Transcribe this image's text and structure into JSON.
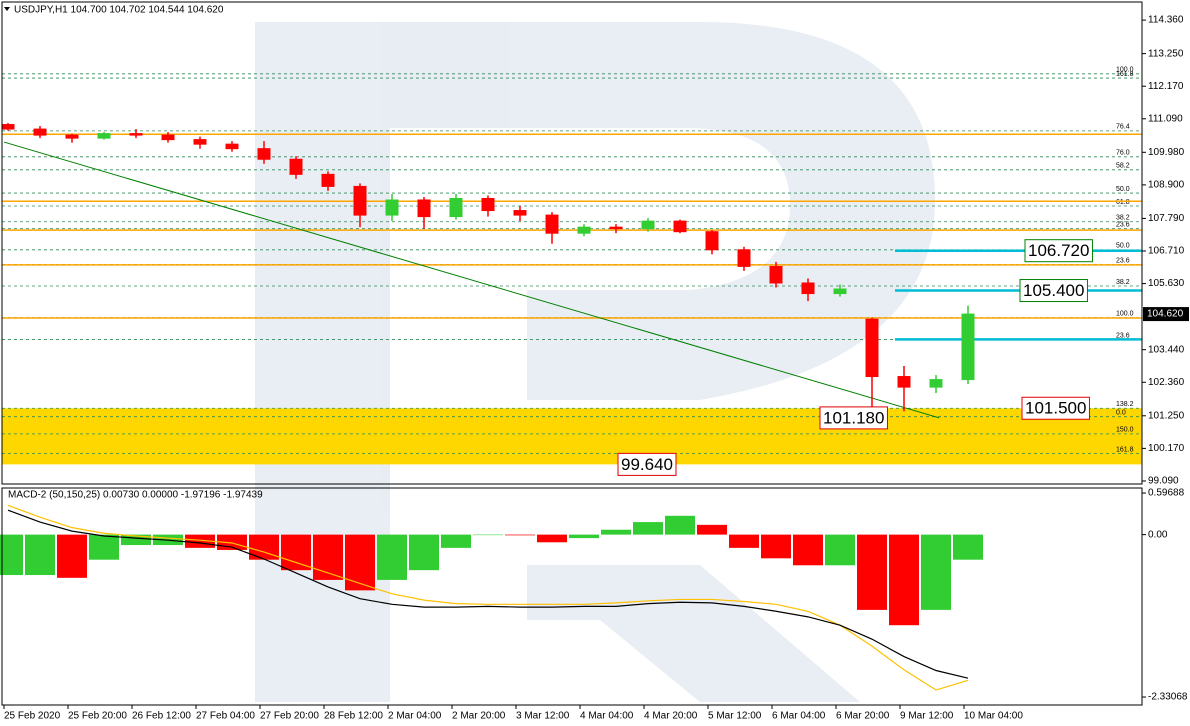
{
  "chart_data": [
    {
      "type": "candlestick",
      "header": "USDJPY,H1  104.700 104.702 104.544 104.620",
      "categories": [
        "25 Feb 2020",
        null,
        "25 Feb 20:00",
        null,
        "26 Feb 12:00",
        null,
        "27 Feb 04:00",
        null,
        "27 Feb 20:00",
        null,
        "28 Feb 12:00",
        null,
        "2 Mar 04:00",
        null,
        "2 Mar 20:00",
        null,
        "3 Mar 12:00",
        null,
        "4 Mar 04:00",
        null,
        "4 Mar 20:00",
        null,
        "5 Mar 12:00",
        null,
        "6 Mar 04:00",
        null,
        "6 Mar 20:00",
        null,
        "9 Mar 12:00",
        null,
        "10 Mar 04:00"
      ],
      "open": [
        110.9,
        110.75,
        110.55,
        110.45,
        110.6,
        110.55,
        110.4,
        110.25,
        110.1,
        109.75,
        109.25,
        108.85,
        107.9,
        108.4,
        107.85,
        108.45,
        108.05,
        107.9,
        107.3,
        107.5,
        107.45,
        107.7,
        107.35,
        106.75,
        106.2,
        105.65,
        105.3,
        104.45,
        102.55,
        102.2,
        102.45
      ],
      "high": [
        110.95,
        110.85,
        110.6,
        110.65,
        110.75,
        110.65,
        110.5,
        110.35,
        110.35,
        109.85,
        109.35,
        108.95,
        108.6,
        108.5,
        108.6,
        108.55,
        108.2,
        108.0,
        107.6,
        107.6,
        107.8,
        107.75,
        107.4,
        106.85,
        106.35,
        105.8,
        105.6,
        104.5,
        102.9,
        102.6,
        104.9
      ],
      "low": [
        110.7,
        110.45,
        110.3,
        110.4,
        110.45,
        110.3,
        110.1,
        110.0,
        109.6,
        109.1,
        108.7,
        107.5,
        107.7,
        107.45,
        107.75,
        107.85,
        107.7,
        106.95,
        107.2,
        107.3,
        107.35,
        107.3,
        106.6,
        106.05,
        105.5,
        105.05,
        105.2,
        101.18,
        101.4,
        102.0,
        102.3
      ],
      "close": [
        110.75,
        110.55,
        110.45,
        110.6,
        110.55,
        110.4,
        110.25,
        110.1,
        109.75,
        109.25,
        108.85,
        107.9,
        108.4,
        107.85,
        108.45,
        108.05,
        107.9,
        107.3,
        107.5,
        107.45,
        107.7,
        107.35,
        106.75,
        106.2,
        105.65,
        105.3,
        105.45,
        102.55,
        102.2,
        102.45,
        104.62
      ],
      "up_color": "#32cd32",
      "down_color": "#ff0000",
      "ylim": [
        98.99,
        114.96
      ],
      "yticks": [
        {
          "value": 114.36,
          "label": "114.360"
        },
        {
          "value": 113.25,
          "label": "113.250"
        },
        {
          "value": 112.17,
          "label": "112.170"
        },
        {
          "value": 111.09,
          "label": "111.090"
        },
        {
          "value": 109.98,
          "label": "109.980"
        },
        {
          "value": 108.9,
          "label": "108.900"
        },
        {
          "value": 107.79,
          "label": "107.790"
        },
        {
          "value": 106.71,
          "label": "106.710"
        },
        {
          "value": 105.63,
          "label": "105.630"
        },
        {
          "value": 103.44,
          "label": "103.440"
        },
        {
          "value": 102.36,
          "label": "102.360"
        },
        {
          "value": 101.25,
          "label": "101.250"
        },
        {
          "value": 100.17,
          "label": "100.170"
        },
        {
          "value": 99.09,
          "label": "99.090"
        }
      ],
      "price_tag": {
        "value": 104.62,
        "label": "104.620"
      },
      "zone": [
        99.64,
        101.5
      ],
      "zone_color": "#ffd700",
      "resistance_lines": [
        110.58,
        108.36,
        107.4,
        106.25,
        104.49
      ],
      "resistance_color": "#ffa500",
      "target_lines": [
        106.72,
        105.4,
        103.78
      ],
      "target_color": "#00bcd4",
      "levels": [
        {
          "value": 112.58,
          "label": "100.0"
        },
        {
          "value": 112.44,
          "label": "161.8"
        },
        {
          "value": 110.69,
          "label": "76.4"
        },
        {
          "value": 109.83,
          "label": "76.0"
        },
        {
          "value": 109.4,
          "label": "58.2"
        },
        {
          "value": 108.63,
          "label": "50.0"
        },
        {
          "value": 108.2,
          "label": "61.8"
        },
        {
          "value": 107.68,
          "label": "38.2"
        },
        {
          "value": 107.45,
          "label": "23.6"
        },
        {
          "value": 106.75,
          "label": "50.0"
        },
        {
          "value": 106.26,
          "label": "23.6"
        },
        {
          "value": 105.55,
          "label": "38.2"
        },
        {
          "value": 104.5,
          "label": "100.0"
        },
        {
          "value": 103.78,
          "label": "23.6"
        },
        {
          "value": 101.5,
          "label": "138.2"
        },
        {
          "value": 101.22,
          "label": "0.0"
        },
        {
          "value": 100.65,
          "label": "150.0"
        },
        {
          "value": 100.0,
          "label": "161.8"
        }
      ],
      "level_color": "#2e8b57",
      "trendline": {
        "x": [
          0,
          29.1
        ],
        "y": [
          110.32,
          101.18
        ],
        "color": "#008000"
      },
      "annotations": [
        {
          "value": 106.72,
          "label": "106.720",
          "color": "#008000"
        },
        {
          "value": 105.4,
          "label": "105.400",
          "color": "#008000"
        },
        {
          "value": 101.5,
          "label": "101.500",
          "color": "#e00000"
        },
        {
          "value": 101.18,
          "label": "101.180",
          "color": "#e00000"
        },
        {
          "value": 99.64,
          "label": "99.640",
          "color": "#e00000"
        }
      ]
    },
    {
      "type": "macd",
      "header": "MACD-2 (50,150,25) 0.00730 0.00000 -1.97196 -1.97439",
      "histogram": [
        -0.58,
        -0.58,
        -0.62,
        -0.36,
        -0.15,
        -0.15,
        -0.19,
        -0.22,
        -0.36,
        -0.51,
        -0.65,
        -0.8,
        -0.65,
        -0.51,
        -0.19,
        0,
        -0.01,
        -0.11,
        -0.05,
        0.07,
        0.18,
        0.27,
        0.14,
        -0.19,
        -0.34,
        -0.44,
        -0.44,
        -1.08,
        -1.3,
        -1.08,
        -0.36
      ],
      "macd": [
        0.35,
        0.18,
        0.05,
        -0.02,
        -0.05,
        -0.08,
        -0.12,
        -0.18,
        -0.35,
        -0.55,
        -0.75,
        -0.92,
        -1.0,
        -1.04,
        -1.04,
        -1.03,
        -1.04,
        -1.04,
        -1.03,
        -1.03,
        -0.99,
        -0.97,
        -0.98,
        -1.03,
        -1.1,
        -1.18,
        -1.3,
        -1.5,
        -1.75,
        -1.95,
        -2.06
      ],
      "signal": [
        0.42,
        0.25,
        0.1,
        0.02,
        -0.02,
        -0.05,
        -0.08,
        -0.12,
        -0.25,
        -0.4,
        -0.55,
        -0.7,
        -0.85,
        -0.94,
        -0.99,
        -1.0,
        -1.0,
        -1.0,
        -1.0,
        -0.98,
        -0.95,
        -0.93,
        -0.93,
        -0.96,
        -1.0,
        -1.1,
        -1.3,
        -1.6,
        -1.94,
        -2.23,
        -2.09
      ],
      "up_color": "#32cd32",
      "down_color": "#ff0000",
      "macd_color": "#000000",
      "signal_color": "#ffc000",
      "ylim": [
        -2.445,
        0.669
      ],
      "yticks": [
        0.59688,
        {
          "value": 0,
          "label": "0.00"
        },
        -2.33068
      ]
    }
  ]
}
